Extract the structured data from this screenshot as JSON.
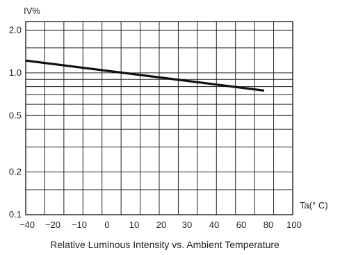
{
  "chart_data": {
    "type": "line",
    "title": "Relative Luminous Intensity vs. Ambient Temperature",
    "xlabel": "Ta(° C)",
    "ylabel": "IV%",
    "x_scale": "linear",
    "y_scale": "log",
    "xlim": [
      -40,
      100
    ],
    "ylim": [
      0.1,
      2.3
    ],
    "x_ticks": [
      -40,
      -30,
      -20,
      -10,
      0,
      10,
      20,
      30,
      40,
      50,
      60,
      70,
      80,
      90,
      100
    ],
    "x_tick_labels": [
      "-40",
      "-20",
      "-10",
      "0",
      "10",
      "20",
      "30",
      "40",
      "60",
      "80",
      "100"
    ],
    "y_ticks": [
      0.1,
      0.15,
      0.2,
      0.3,
      0.4,
      0.5,
      0.6,
      0.7,
      0.8,
      0.9,
      1.0,
      1.5,
      2.0
    ],
    "y_tick_labels": [
      "2.0",
      "1.0",
      "0.5",
      "0.2",
      "0.1"
    ],
    "grid": true,
    "series": [
      {
        "x": [
          -40,
          85
        ],
        "y": [
          1.22,
          0.75
        ],
        "color": "#111111"
      }
    ]
  }
}
